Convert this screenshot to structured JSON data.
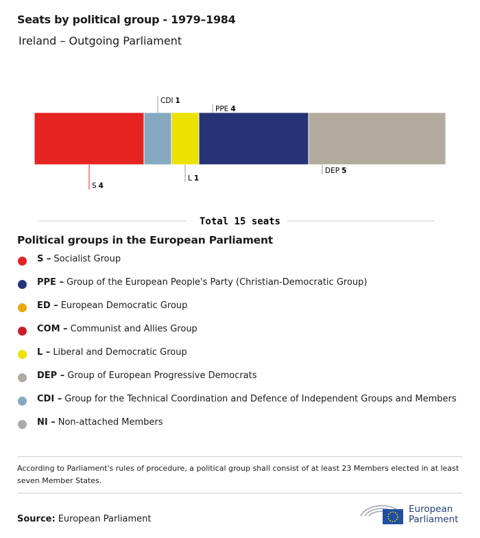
{
  "chart_data": {
    "type": "stacked-bar",
    "title": "Seats by political group - 1979–1984",
    "subtitle": "Ireland – Outgoing Parliament",
    "series": [
      {
        "name": "S",
        "color": "#e52421",
        "values": [
          4
        ]
      },
      {
        "name": "CDI",
        "color": "#86a9bf",
        "values": [
          1
        ]
      },
      {
        "name": "L",
        "color": "#ede100",
        "values": [
          1
        ]
      },
      {
        "name": "PPE",
        "color": "#263476",
        "values": [
          4
        ]
      },
      {
        "name": "DEP",
        "color": "#b3aa9e",
        "values": [
          5
        ]
      }
    ],
    "total_label": "Total 15 seats"
  },
  "legend": {
    "title": "Political groups in the European Parliament",
    "items": [
      {
        "abbr": "S –",
        "name": "Socialist Group",
        "color": "#e52421"
      },
      {
        "abbr": "PPE –",
        "name": "Group of the European People's Party (Christian-Democratic Group)",
        "color": "#263476"
      },
      {
        "abbr": "ED –",
        "name": "European Democratic Group",
        "color": "#e9a90d"
      },
      {
        "abbr": "COM –",
        "name": "Communist and Allies Group",
        "color": "#c8202a"
      },
      {
        "abbr": "L –",
        "name": "Liberal and Democratic Group",
        "color": "#ede100"
      },
      {
        "abbr": "DEP –",
        "name": "Group of European Progressive Democrats",
        "color": "#b3aa9e"
      },
      {
        "abbr": "CDI –",
        "name": "Group for the Technical Coordination and Defence of Independent Groups and Members",
        "color": "#86a9bf"
      },
      {
        "abbr": "NI –",
        "name": "Non-attached Members",
        "color": "#aaaaaa"
      }
    ]
  },
  "footnote": "According to Parliament's rules of procedure, a political group shall consist of at least 23 Members elected in at least seven Member States.",
  "source": {
    "label": "Source:",
    "text": "European Parliament"
  },
  "logo": {
    "line1": "European",
    "line2": "Parliament"
  }
}
